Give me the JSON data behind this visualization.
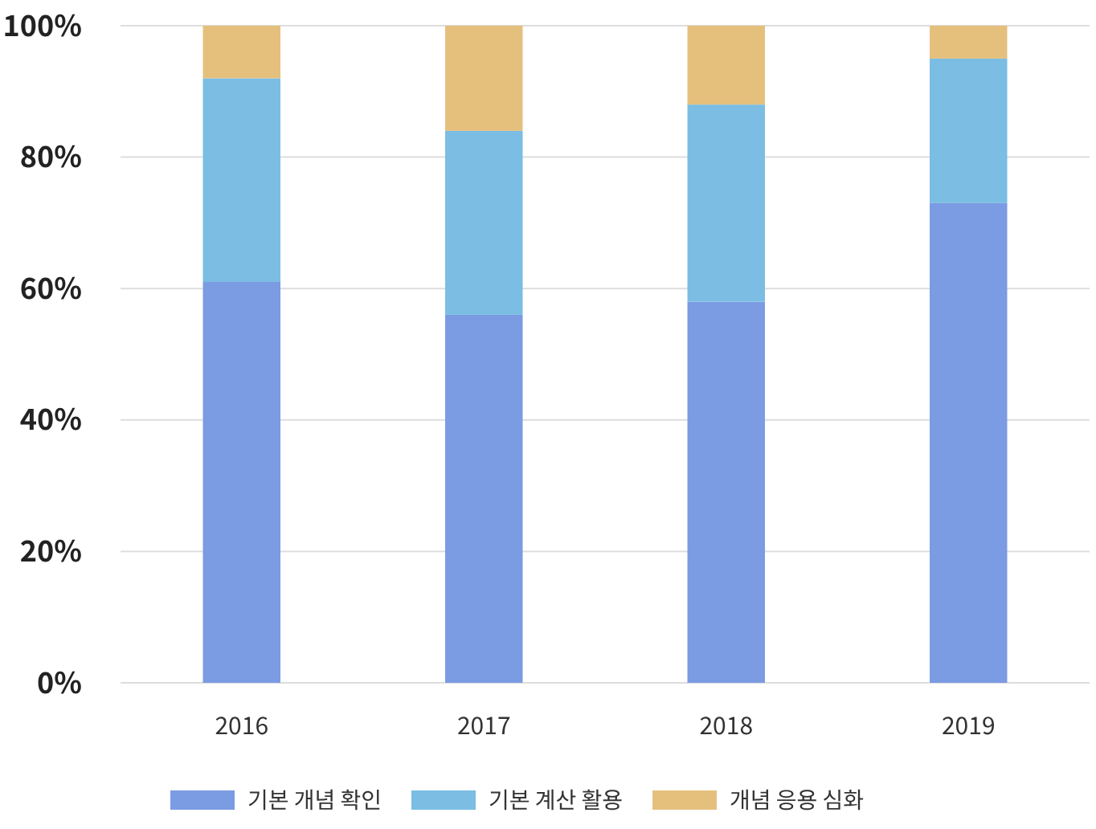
{
  "chart_data": {
    "type": "bar",
    "stacked": true,
    "categories": [
      "2016",
      "2017",
      "2018",
      "2019"
    ],
    "series": [
      {
        "name": "기본 개념 확인",
        "color": "#7b9be3",
        "values": [
          61,
          56,
          58,
          73
        ]
      },
      {
        "name": "기본 계산 활용",
        "color": "#7bbde3",
        "values": [
          31,
          28,
          30,
          22
        ]
      },
      {
        "name": "개념 응용 심화",
        "color": "#e5c07d",
        "values": [
          8,
          16,
          12,
          5
        ]
      }
    ],
    "ylim": [
      0,
      100
    ],
    "yticks": [
      {
        "value": 0,
        "label": "0%"
      },
      {
        "value": 20,
        "label": "20%"
      },
      {
        "value": 40,
        "label": "40%"
      },
      {
        "value": 60,
        "label": "60%"
      },
      {
        "value": 80,
        "label": "80%"
      },
      {
        "value": 100,
        "label": "100%"
      }
    ],
    "grid": "y",
    "legend": "bottom"
  }
}
